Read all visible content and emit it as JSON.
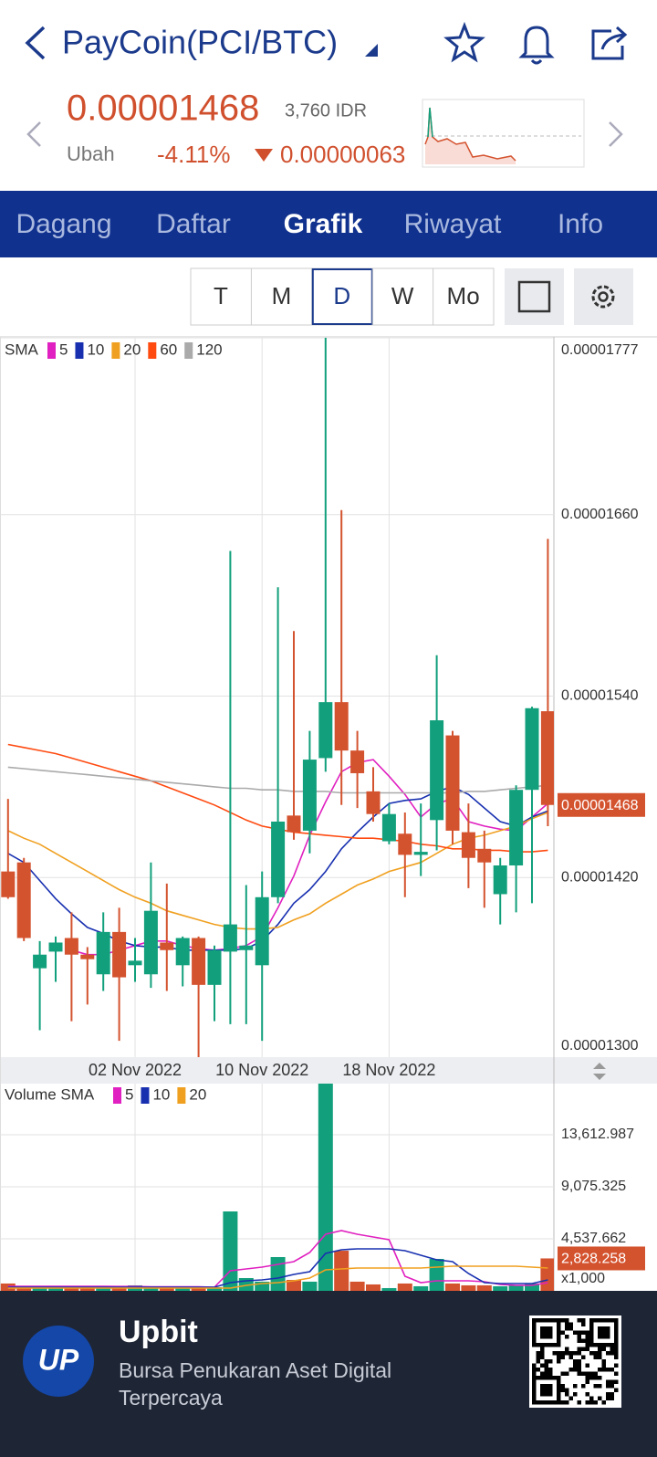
{
  "header": {
    "title": "PayCoin(PCI/BTC)"
  },
  "price": {
    "value": "0.00001468",
    "idr": "3,760 IDR",
    "change_label": "Ubah",
    "change_pct": "-4.11%",
    "change_amount": "0.00000063"
  },
  "tabs": [
    "Dagang",
    "Daftar",
    "Grafik",
    "Riwayat",
    "Info"
  ],
  "periods": [
    "T",
    "M",
    "D",
    "W",
    "Mo"
  ],
  "footer": {
    "logo": "UP",
    "title": "Upbit",
    "subtitle_lines": [
      "Bursa Penukaran Aset Digital",
      "Terpercaya"
    ]
  },
  "chart_data": [
    {
      "type": "candlestick",
      "legend_title": "SMA",
      "categories": [
        null,
        null,
        null,
        null,
        null,
        null,
        null,
        null,
        "02 Nov 2022",
        null,
        null,
        null,
        null,
        null,
        null,
        null,
        "10 Nov 2022",
        null,
        null,
        null,
        null,
        null,
        null,
        null,
        "18 Nov 2022",
        null,
        null,
        null,
        null,
        null,
        null,
        null,
        null,
        null,
        null
      ],
      "open": [
        1.424e-05,
        1.43e-05,
        1.36e-05,
        1.371e-05,
        1.38e-05,
        1.369e-05,
        1.356e-05,
        1.384e-05,
        1.362e-05,
        1.356e-05,
        1.377e-05,
        1.362e-05,
        1.38e-05,
        1.349e-05,
        1.371e-05,
        1.372e-05,
        1.362e-05,
        1.407e-05,
        1.461e-05,
        1.451e-05,
        1.499e-05,
        1.536e-05,
        1.504e-05,
        1.477e-05,
        1.444e-05,
        1.449e-05,
        1.435e-05,
        1.458e-05,
        1.514e-05,
        1.45e-05,
        1.439e-05,
        1.409e-05,
        1.428e-05,
        1.478e-05,
        1.53e-05
      ],
      "high": [
        1.472e-05,
        1.433e-05,
        1.378e-05,
        1.381e-05,
        1.397e-05,
        1.374e-05,
        1.397e-05,
        1.4e-05,
        1.38e-05,
        1.43e-05,
        1.416e-05,
        1.381e-05,
        1.381e-05,
        1.375e-05,
        1.636e-05,
        1.415e-05,
        1.424e-05,
        1.612e-05,
        1.583e-05,
        1.517e-05,
        1.777e-05,
        1.663e-05,
        1.517e-05,
        1.493e-05,
        1.469e-05,
        1.463e-05,
        1.469e-05,
        1.567e-05,
        1.517e-05,
        1.469e-05,
        1.451e-05,
        1.433e-05,
        1.481e-05,
        1.533e-05,
        1.644e-05
      ],
      "low": [
        1.406e-05,
        1.378e-05,
        1.319e-05,
        1.351e-05,
        1.325e-05,
        1.336e-05,
        1.345e-05,
        1.312e-05,
        1.351e-05,
        1.347e-05,
        1.345e-05,
        1.348e-05,
        1.301e-05,
        1.325e-05,
        1.323e-05,
        1.323e-05,
        1.312e-05,
        1.403e-05,
        1.445e-05,
        1.436e-05,
        1.49e-05,
        1.468e-05,
        1.466e-05,
        1.457e-05,
        1.442e-05,
        1.407e-05,
        1.421e-05,
        1.438e-05,
        1.442e-05,
        1.413e-05,
        1.4e-05,
        1.389e-05,
        1.397e-05,
        1.403e-05,
        1.454e-05
      ],
      "close": [
        1.407e-05,
        1.38e-05,
        1.369e-05,
        1.377e-05,
        1.369e-05,
        1.366e-05,
        1.384e-05,
        1.354e-05,
        1.365e-05,
        1.398e-05,
        1.372e-05,
        1.38e-05,
        1.349e-05,
        1.372e-05,
        1.389e-05,
        1.375e-05,
        1.407e-05,
        1.457e-05,
        1.45e-05,
        1.498e-05,
        1.536e-05,
        1.504e-05,
        1.489e-05,
        1.462e-05,
        1.462e-05,
        1.435e-05,
        1.437e-05,
        1.524e-05,
        1.451e-05,
        1.433e-05,
        1.43e-05,
        1.428e-05,
        1.478e-05,
        1.532e-05,
        1.468e-05
      ],
      "up_color": "#12a07c",
      "down_color": "#d4532f",
      "series": [
        {
          "name": "5",
          "color": "#e020c0",
          "values": [
            null,
            null,
            null,
            null,
            1.372e-05,
            1.369e-05,
            1.369e-05,
            1.372e-05,
            1.375e-05,
            1.378e-05,
            1.378e-05,
            1.375e-05,
            1.373e-05,
            1.372e-05,
            1.373e-05,
            1.375e-05,
            1.381e-05,
            1.4e-05,
            1.421e-05,
            1.448e-05,
            1.47e-05,
            1.49e-05,
            1.496e-05,
            1.498e-05,
            1.487e-05,
            1.475e-05,
            1.46e-05,
            1.469e-05,
            1.472e-05,
            1.457e-05,
            1.454e-05,
            1.452e-05,
            1.451e-05,
            1.46e-05,
            1.469e-05
          ]
        },
        {
          "name": "10",
          "color": "#1830b0",
          "values": [
            1.436e-05,
            1.43e-05,
            1.418e-05,
            1.406e-05,
            1.396e-05,
            1.387e-05,
            1.383e-05,
            1.378e-05,
            1.375e-05,
            1.374e-05,
            1.374e-05,
            1.372e-05,
            1.372e-05,
            1.372e-05,
            1.372e-05,
            1.373e-05,
            1.378e-05,
            1.389e-05,
            1.403e-05,
            1.412e-05,
            1.424e-05,
            1.439e-05,
            1.45e-05,
            1.46e-05,
            1.469e-05,
            1.471e-05,
            1.472e-05,
            1.477e-05,
            1.48e-05,
            1.475e-05,
            1.466e-05,
            1.457e-05,
            1.454e-05,
            1.46e-05,
            1.464e-05
          ]
        },
        {
          "name": "20",
          "color": "#f0a020",
          "values": [
            1.451e-05,
            1.446e-05,
            1.442e-05,
            1.436e-05,
            1.43e-05,
            1.424e-05,
            1.418e-05,
            1.412e-05,
            1.407e-05,
            1.403e-05,
            1.398e-05,
            1.395e-05,
            1.392e-05,
            1.389e-05,
            1.387e-05,
            1.386e-05,
            1.386e-05,
            1.387e-05,
            1.392e-05,
            1.396e-05,
            1.403e-05,
            1.409e-05,
            1.415e-05,
            1.419e-05,
            1.424e-05,
            1.427e-05,
            1.43e-05,
            1.436e-05,
            1.442e-05,
            1.446e-05,
            1.448e-05,
            1.451e-05,
            1.454e-05,
            1.459e-05,
            1.463e-05
          ]
        },
        {
          "name": "60",
          "color": "#ff4a10",
          "values": [
            1.508e-05,
            1.506e-05,
            1.504e-05,
            1.502e-05,
            1.499e-05,
            1.496e-05,
            1.493e-05,
            1.49e-05,
            1.487e-05,
            1.484e-05,
            1.48e-05,
            1.476e-05,
            1.472e-05,
            1.468e-05,
            1.463e-05,
            1.458e-05,
            1.454e-05,
            1.452e-05,
            1.45e-05,
            1.449e-05,
            1.448e-05,
            1.447e-05,
            1.446e-05,
            1.446e-05,
            1.445e-05,
            1.444e-05,
            1.442e-05,
            1.441e-05,
            1.439e-05,
            1.439e-05,
            1.438e-05,
            1.438e-05,
            1.437e-05,
            1.437e-05,
            1.438e-05
          ]
        },
        {
          "name": "120",
          "color": "#aaaaaa",
          "values": [
            1.493e-05,
            1.492e-05,
            1.491e-05,
            1.49e-05,
            1.489e-05,
            1.488e-05,
            1.487e-05,
            1.486e-05,
            1.485e-05,
            1.484e-05,
            1.483e-05,
            1.482e-05,
            1.481e-05,
            1.48e-05,
            1.479e-05,
            1.479e-05,
            1.478e-05,
            1.478e-05,
            1.477e-05,
            1.477e-05,
            1.477e-05,
            1.476e-05,
            1.476e-05,
            1.476e-05,
            1.476e-05,
            1.476e-05,
            1.476e-05,
            1.476e-05,
            1.476e-05,
            1.477e-05,
            1.477e-05,
            1.478e-05,
            1.479e-05,
            1.48e-05,
            1.481e-05
          ]
        }
      ],
      "ylim": [
        1.3e-05,
        1.777e-05
      ],
      "yticks": [
        {
          "value": 1.3e-05,
          "label": "0.00001300"
        },
        {
          "value": 1.42e-05,
          "label": "0.00001420"
        },
        {
          "value": 1.54e-05,
          "label": "0.00001540"
        },
        {
          "value": 1.66e-05,
          "label": "0.00001660"
        },
        1.777e-05
      ],
      "marker": {
        "value": 1.468e-05
      },
      "grid": true
    },
    {
      "type": "bar",
      "legend_title": "Volume SMA",
      "unit_label": "x1,000",
      "values": [
        640,
        400,
        400,
        320,
        320,
        320,
        320,
        320,
        480,
        400,
        320,
        320,
        320,
        320,
        6925,
        1115,
        800,
        2945,
        955,
        800,
        18500,
        3500,
        800,
        560,
        240,
        640,
        400,
        2785,
        640,
        480,
        480,
        400,
        480,
        640,
        2828.258
      ],
      "colors": [
        "#d4532f",
        "#d4532f",
        "#12a07c",
        "#12a07c",
        "#d4532f",
        "#d4532f",
        "#12a07c",
        "#d4532f",
        "#12a07c",
        "#12a07c",
        "#d4532f",
        "#12a07c",
        "#d4532f",
        "#12a07c",
        "#12a07c",
        "#12a07c",
        "#12a07c",
        "#12a07c",
        "#d4532f",
        "#12a07c",
        "#12a07c",
        "#d4532f",
        "#d4532f",
        "#d4532f",
        "#12a07c",
        "#d4532f",
        "#12a07c",
        "#12a07c",
        "#d4532f",
        "#d4532f",
        "#d4532f",
        "#12a07c",
        "#12a07c",
        "#12a07c",
        "#d4532f"
      ],
      "series": [
        {
          "name": "5",
          "color": "#e020c0",
          "values": [
            400,
            400,
            400,
            400,
            400,
            400,
            400,
            380,
            380,
            360,
            360,
            360,
            360,
            318,
            1750,
            1910,
            2070,
            2310,
            2550,
            3340,
            4935,
            5254,
            4935,
            4696,
            4458,
            1274,
            716,
            876,
            876,
            876,
            796,
            557,
            478,
            478,
            716
          ]
        },
        {
          "name": "10",
          "color": "#1830b0",
          "values": [
            320,
            320,
            320,
            320,
            320,
            320,
            320,
            320,
            320,
            320,
            320,
            320,
            320,
            320,
            716,
            876,
            955,
            1114,
            1433,
            1672,
            3264,
            3582,
            3662,
            3662,
            3662,
            3503,
            3105,
            2706,
            2546,
            1513,
            716,
            637,
            637,
            637,
            955
          ]
        },
        {
          "name": "20",
          "color": "#f0a020",
          "values": [
            240,
            240,
            240,
            240,
            240,
            240,
            240,
            240,
            240,
            240,
            240,
            240,
            240,
            240,
            240,
            478,
            637,
            716,
            876,
            1114,
            1831,
            1911,
            1990,
            1990,
            1990,
            1990,
            1990,
            2070,
            2149,
            2149,
            2149,
            2149,
            2149,
            2070,
            1990
          ]
        }
      ],
      "ylim": [
        0,
        18070
      ],
      "yticks": [
        {
          "value": 4537.662,
          "label": "4,537.662"
        },
        {
          "value": 9075.325,
          "label": "9,075.325"
        },
        {
          "value": 13612.987,
          "label": "13,612.987"
        }
      ],
      "marker": {
        "value": 2828.258,
        "label": "2,828.258"
      },
      "grid": true
    }
  ]
}
